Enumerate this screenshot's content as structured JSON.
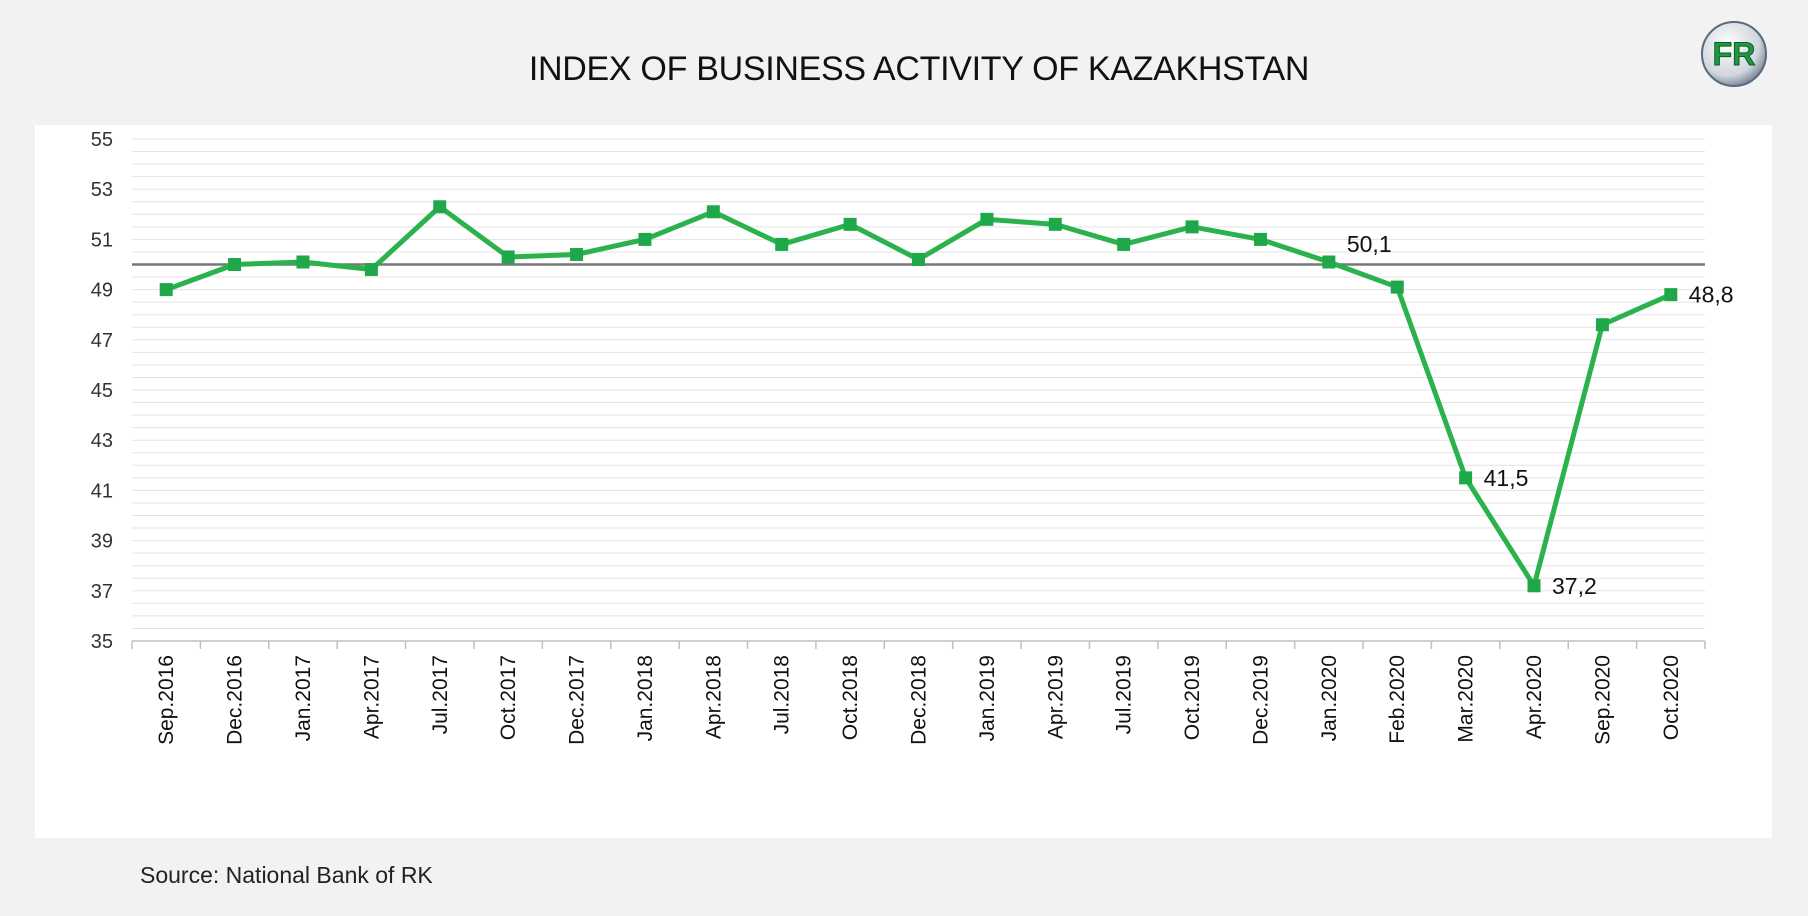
{
  "title": "INDEX OF BUSINESS ACTIVITY OF KAZAKHSTAN",
  "logo_text": "FR",
  "source": "Source: National Bank of RK",
  "colors": {
    "series": "#2bb24c",
    "marker": "#1fa84a",
    "threshold": "#777777",
    "background": "#f2f2f2",
    "panel": "#ffffff"
  },
  "chart_data": {
    "type": "line",
    "categories": [
      "Sep.2016",
      "Dec.2016",
      "Jan.2017",
      "Apr.2017",
      "Jul.2017",
      "Oct.2017",
      "Dec.2017",
      "Jan.2018",
      "Apr.2018",
      "Jul.2018",
      "Oct.2018",
      "Dec.2018",
      "Jan.2019",
      "Apr.2019",
      "Jul.2019",
      "Oct.2019",
      "Dec.2019",
      "Jan.2020",
      "Feb.2020",
      "Mar.2020",
      "Apr.2020",
      "Sep.2020",
      "Oct.2020"
    ],
    "series": [
      {
        "name": "",
        "values": [
          49.0,
          50.0,
          50.1,
          49.8,
          52.3,
          50.3,
          50.4,
          51.0,
          52.1,
          50.8,
          51.6,
          50.2,
          51.8,
          51.6,
          50.8,
          51.5,
          51.0,
          50.1,
          49.1,
          41.5,
          37.2,
          47.6,
          48.8
        ]
      }
    ],
    "ylim": [
      35,
      55
    ],
    "yticks": [
      35,
      37,
      39,
      41,
      43,
      45,
      47,
      49,
      51,
      53,
      55
    ],
    "threshold": 50,
    "grid": true,
    "xlabel": "",
    "ylabel": "",
    "data_labels": [
      {
        "category": "Jan.2020",
        "text": "50,1"
      },
      {
        "category": "Mar.2020",
        "text": "41,5"
      },
      {
        "category": "Apr.2020",
        "text": "37,2"
      },
      {
        "category": "Oct.2020",
        "text": "48,8"
      }
    ]
  }
}
